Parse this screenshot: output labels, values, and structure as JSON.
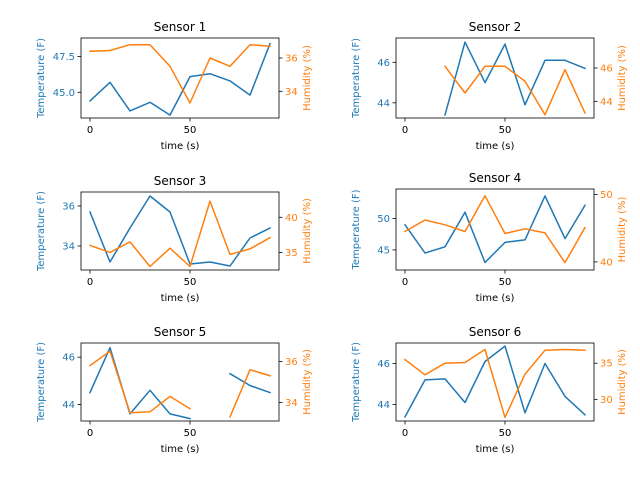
{
  "colors": {
    "temperature": "#1f77b4",
    "humidity": "#ff7f0e",
    "text": "#000000",
    "frame": "#000000"
  },
  "chart_data": [
    {
      "type": "line",
      "title": "Sensor 1",
      "xlabel": "time (s)",
      "ylabel": "Temperature (F)",
      "y2label": "Humidity (%)",
      "x": [
        0,
        10,
        20,
        30,
        40,
        50,
        60,
        70,
        80,
        90
      ],
      "xticks": [
        0,
        50
      ],
      "xlim": [
        -4.5,
        94.5
      ],
      "ylim": [
        43.2,
        48.8
      ],
      "y2lim": [
        32.4,
        37.2
      ],
      "yticks": [
        45.0,
        47.5
      ],
      "ytick_labels": [
        "45.0",
        "47.5"
      ],
      "y2ticks": [
        34,
        36
      ],
      "series": [
        {
          "axis": "left",
          "values": [
            44.4,
            45.7,
            43.7,
            44.3,
            43.4,
            46.1,
            46.3,
            45.8,
            44.8,
            48.4
          ]
        },
        {
          "axis": "right",
          "values": [
            36.4,
            36.45,
            36.8,
            36.8,
            35.5,
            33.3,
            36.0,
            35.5,
            36.8,
            36.7
          ]
        }
      ]
    },
    {
      "type": "line",
      "title": "Sensor 2",
      "xlabel": "time (s)",
      "ylabel": "Temperature (F)",
      "y2label": "Humidity (%)",
      "x": [
        0,
        10,
        20,
        30,
        40,
        50,
        60,
        70,
        80,
        90
      ],
      "xticks": [
        0,
        50
      ],
      "xlim": [
        -4.5,
        94.5
      ],
      "ylim": [
        43.25,
        47.2
      ],
      "y2lim": [
        43.0,
        47.8
      ],
      "yticks": [
        44,
        46
      ],
      "ytick_labels": [
        "44",
        "46"
      ],
      "y2ticks": [
        44,
        46
      ],
      "series": [
        {
          "axis": "left",
          "values": [
            null,
            null,
            43.4,
            47.0,
            45.0,
            46.9,
            43.9,
            46.1,
            46.1,
            45.7
          ]
        },
        {
          "axis": "right",
          "values": [
            null,
            null,
            46.1,
            44.5,
            46.1,
            46.1,
            45.2,
            43.2,
            45.9,
            43.3
          ]
        }
      ]
    },
    {
      "type": "line",
      "title": "Sensor 3",
      "xlabel": "time (s)",
      "ylabel": "Temperature (F)",
      "y2label": "Humidity (%)",
      "x": [
        0,
        10,
        20,
        30,
        40,
        50,
        60,
        70,
        80,
        90
      ],
      "xticks": [
        0,
        50
      ],
      "xlim": [
        -4.5,
        94.5
      ],
      "ylim": [
        32.8,
        36.7
      ],
      "y2lim": [
        32.5,
        43.6
      ],
      "yticks": [
        34,
        36
      ],
      "ytick_labels": [
        "34",
        "36"
      ],
      "y2ticks": [
        35,
        40
      ],
      "series": [
        {
          "axis": "left",
          "values": [
            35.7,
            33.2,
            34.9,
            36.5,
            35.7,
            33.1,
            33.2,
            33.0,
            34.4,
            34.9
          ]
        },
        {
          "axis": "right",
          "values": [
            36.0,
            35.0,
            36.5,
            33.0,
            35.6,
            33.0,
            42.3,
            34.7,
            35.5,
            37.1
          ]
        }
      ]
    },
    {
      "type": "line",
      "title": "Sensor 4",
      "xlabel": "time (s)",
      "ylabel": "Temperature (F)",
      "y2label": "Humidity (%)",
      "x": [
        0,
        10,
        20,
        30,
        40,
        50,
        60,
        70,
        80,
        90
      ],
      "xticks": [
        0,
        50
      ],
      "xlim": [
        -4.5,
        94.5
      ],
      "ylim": [
        41.8,
        54.7
      ],
      "y2lim": [
        38.8,
        50.8
      ],
      "yticks": [
        45,
        50
      ],
      "ytick_labels": [
        "45",
        "50"
      ],
      "y2ticks": [
        40,
        50
      ],
      "series": [
        {
          "axis": "left",
          "values": [
            49.0,
            44.5,
            45.5,
            51.0,
            43.0,
            46.2,
            46.6,
            53.6,
            46.8,
            52.1
          ]
        },
        {
          "axis": "right",
          "values": [
            44.5,
            46.2,
            45.5,
            44.5,
            49.8,
            44.2,
            44.9,
            44.3,
            39.9,
            45.1
          ]
        }
      ]
    },
    {
      "type": "line",
      "title": "Sensor 5",
      "xlabel": "time (s)",
      "ylabel": "Temperature (F)",
      "y2label": "Humidity (%)",
      "x": [
        0,
        10,
        20,
        30,
        40,
        50,
        60,
        70,
        80,
        90
      ],
      "xticks": [
        0,
        50
      ],
      "xlim": [
        -4.5,
        94.5
      ],
      "ylim": [
        43.3,
        46.6
      ],
      "y2lim": [
        33.1,
        36.9
      ],
      "yticks": [
        44,
        46
      ],
      "ytick_labels": [
        "44",
        "46"
      ],
      "y2ticks": [
        34,
        36
      ],
      "series": [
        {
          "axis": "left",
          "values": [
            44.5,
            46.4,
            43.6,
            44.6,
            43.6,
            43.4,
            null,
            45.3,
            44.8,
            44.5
          ]
        },
        {
          "axis": "right",
          "values": [
            35.8,
            36.5,
            33.5,
            33.55,
            34.3,
            33.7,
            null,
            33.3,
            35.6,
            35.3
          ]
        }
      ]
    },
    {
      "type": "line",
      "title": "Sensor 6",
      "xlabel": "time (s)",
      "ylabel": "Temperature (F)",
      "y2label": "Humidity (%)",
      "x": [
        0,
        10,
        20,
        30,
        40,
        50,
        60,
        70,
        80,
        90
      ],
      "xticks": [
        0,
        50
      ],
      "xlim": [
        -4.5,
        94.5
      ],
      "ylim": [
        43.2,
        47.0
      ],
      "y2lim": [
        27.0,
        37.8
      ],
      "yticks": [
        44,
        46
      ],
      "ytick_labels": [
        "44",
        "46"
      ],
      "y2ticks": [
        30,
        35
      ],
      "series": [
        {
          "axis": "left",
          "values": [
            43.4,
            45.2,
            45.25,
            44.1,
            46.1,
            46.85,
            43.6,
            46.0,
            44.4,
            43.5
          ]
        },
        {
          "axis": "right",
          "values": [
            35.5,
            33.4,
            35.0,
            35.1,
            36.9,
            27.5,
            33.5,
            36.8,
            36.9,
            36.8
          ]
        }
      ]
    }
  ]
}
